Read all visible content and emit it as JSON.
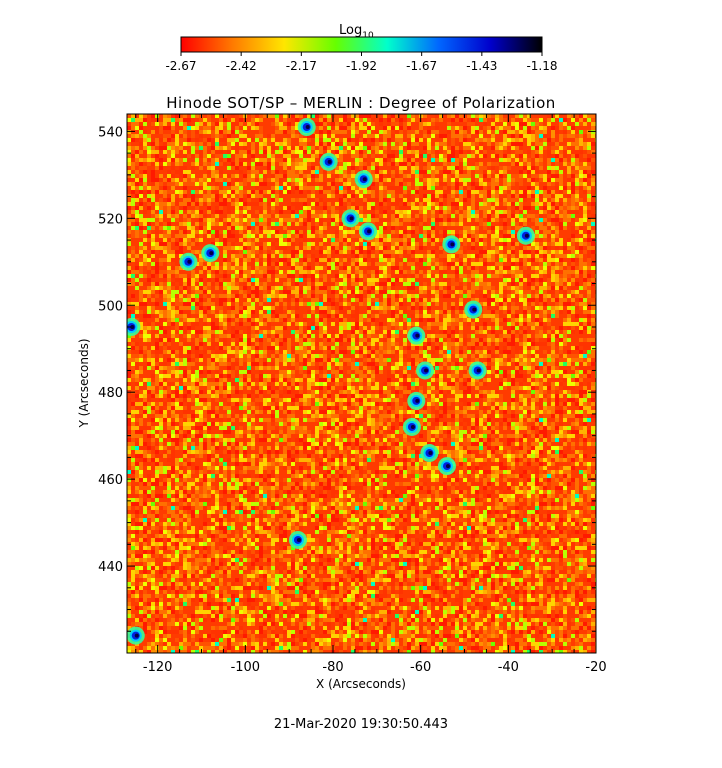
{
  "colorbar": {
    "label": "Log",
    "label_sub": "10",
    "tick_labels": [
      "-2.67",
      "-2.42",
      "-2.17",
      "-1.92",
      "-1.67",
      "-1.43",
      "-1.18"
    ],
    "range": [
      -2.67,
      -1.18
    ],
    "colormap": [
      "#ff0000",
      "#ff7a00",
      "#ffe600",
      "#66ff00",
      "#00ffcc",
      "#0066ff",
      "#0000cc",
      "#000000"
    ]
  },
  "chart_data": {
    "type": "heatmap",
    "title": "Hinode SOT/SP – MERLIN : Degree of Polarization",
    "xlabel": "X (Arcseconds)",
    "ylabel": "Y (Arcseconds)",
    "xlim": [
      -127,
      -20
    ],
    "ylim": [
      420,
      544
    ],
    "xticks": [
      -120,
      -100,
      -80,
      -60,
      -40,
      -20
    ],
    "yticks": [
      440,
      460,
      480,
      500,
      520,
      540
    ],
    "value_range_log10": [
      -2.67,
      -1.18
    ],
    "grid": false,
    "blue_patches": [
      {
        "x": -86,
        "y": 541
      },
      {
        "x": -81,
        "y": 533
      },
      {
        "x": -73,
        "y": 529
      },
      {
        "x": -76,
        "y": 520
      },
      {
        "x": -72,
        "y": 517
      },
      {
        "x": -53,
        "y": 514
      },
      {
        "x": -36,
        "y": 516
      },
      {
        "x": -113,
        "y": 510
      },
      {
        "x": -108,
        "y": 512
      },
      {
        "x": -126,
        "y": 495
      },
      {
        "x": -48,
        "y": 499
      },
      {
        "x": -61,
        "y": 493
      },
      {
        "x": -59,
        "y": 485
      },
      {
        "x": -47,
        "y": 485
      },
      {
        "x": -61,
        "y": 478
      },
      {
        "x": -62,
        "y": 472
      },
      {
        "x": -58,
        "y": 466
      },
      {
        "x": -54,
        "y": 463
      },
      {
        "x": -88,
        "y": 446
      },
      {
        "x": -125,
        "y": 424
      }
    ]
  },
  "footer": {
    "timestamp": "21-Mar-2020 19:30:50.443"
  }
}
